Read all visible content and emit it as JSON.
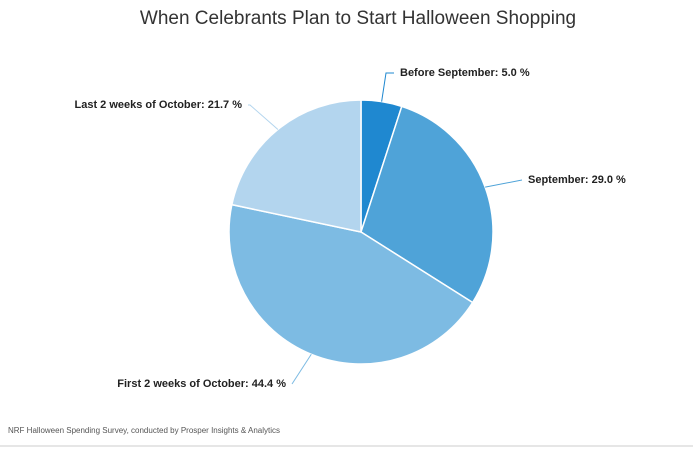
{
  "chart_data": {
    "type": "pie",
    "title": "When Celebrants Plan to Start Halloween Shopping",
    "values": [
      5.0,
      29.0,
      44.4,
      21.7
    ],
    "value_labels": [
      "Before September: 5.0 %",
      "September: 29.0 %",
      "First 2 weeks of October: 44.4 %",
      "Last 2 weeks of October: 21.7 %"
    ],
    "colors": [
      "#1f88d0",
      "#4fa3d8",
      "#7dbbe3",
      "#b3d5ee"
    ],
    "source": "NRF Halloween Spending Survey, conducted by Prosper Insights & Analytics"
  }
}
